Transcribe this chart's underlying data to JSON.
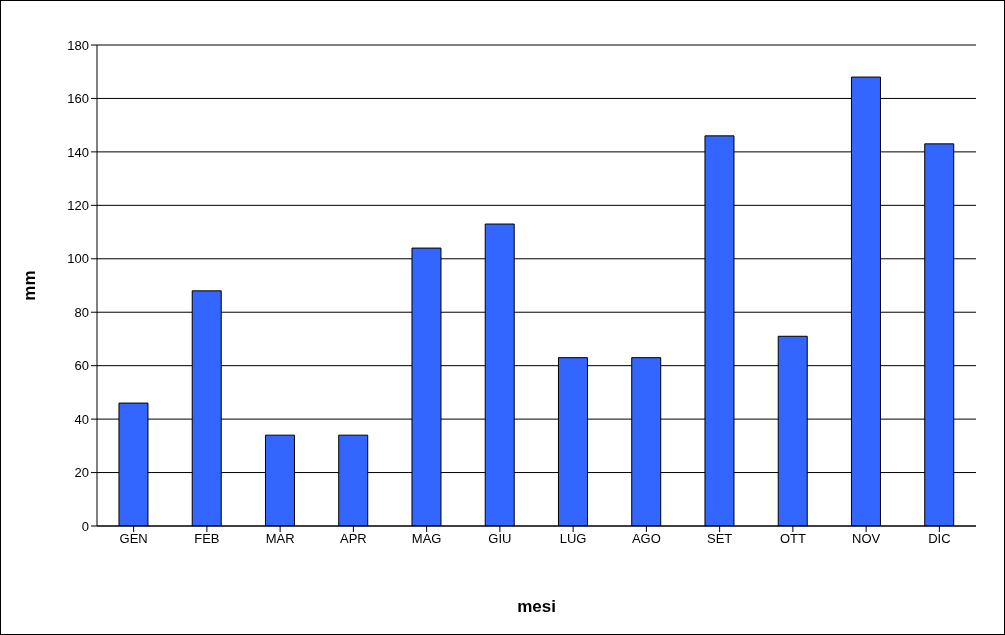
{
  "chart_data": {
    "type": "bar",
    "xlabel": "mesi",
    "ylabel": "mm",
    "categories": [
      "GEN",
      "FEB",
      "MAR",
      "APR",
      "MAG",
      "GIU",
      "LUG",
      "AGO",
      "SET",
      "OTT",
      "NOV",
      "DIC"
    ],
    "values": [
      46,
      88,
      34,
      34,
      104,
      113,
      63,
      63,
      146,
      71,
      168,
      143
    ],
    "color": "#3366ff",
    "ylim": [
      0,
      180
    ],
    "yticks": [
      0,
      20,
      40,
      60,
      80,
      100,
      120,
      140,
      160,
      180
    ],
    "grid": "y",
    "legend": false
  }
}
